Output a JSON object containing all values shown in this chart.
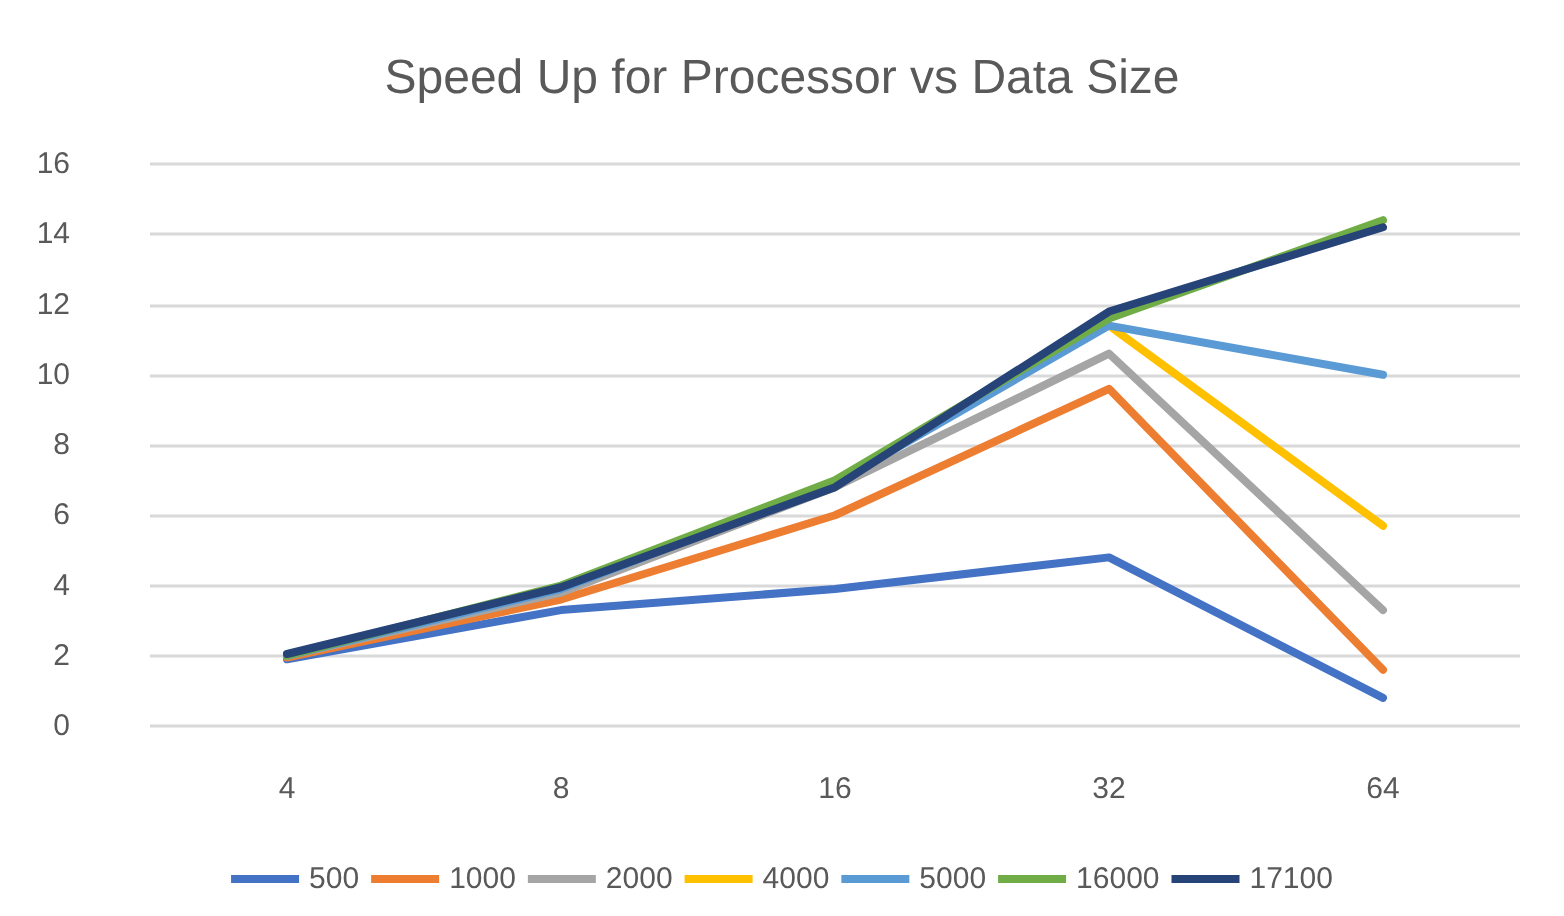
{
  "chart_data": {
    "type": "line",
    "title": "Speed Up for Processor vs Data Size",
    "categories": [
      "4",
      "8",
      "16",
      "32",
      "64"
    ],
    "series": [
      {
        "name": "500",
        "color": "#4472c4",
        "values": [
          1.9,
          3.3,
          3.9,
          4.8,
          0.8
        ]
      },
      {
        "name": "1000",
        "color": "#ed7d31",
        "values": [
          1.95,
          3.6,
          6.0,
          9.6,
          1.6
        ]
      },
      {
        "name": "2000",
        "color": "#a5a5a5",
        "values": [
          2.0,
          3.8,
          6.8,
          10.6,
          3.3
        ]
      },
      {
        "name": "4000",
        "color": "#ffc000",
        "values": [
          null,
          null,
          null,
          11.4,
          5.7
        ]
      },
      {
        "name": "5000",
        "color": "#5b9bd5",
        "values": [
          2.0,
          3.9,
          6.9,
          11.4,
          10.0
        ]
      },
      {
        "name": "16000",
        "color": "#70ad47",
        "values": [
          2.0,
          4.0,
          7.0,
          11.6,
          14.4
        ]
      },
      {
        "name": "17100",
        "color": "#264478",
        "values": [
          2.05,
          3.95,
          6.8,
          11.8,
          14.2
        ]
      }
    ],
    "ylim": [
      0,
      16
    ],
    "yticks": [
      0,
      2,
      4,
      6,
      8,
      10,
      12,
      14,
      16
    ],
    "grid": "y",
    "legend": "bottom",
    "marker": "none",
    "line_style": "solid"
  }
}
